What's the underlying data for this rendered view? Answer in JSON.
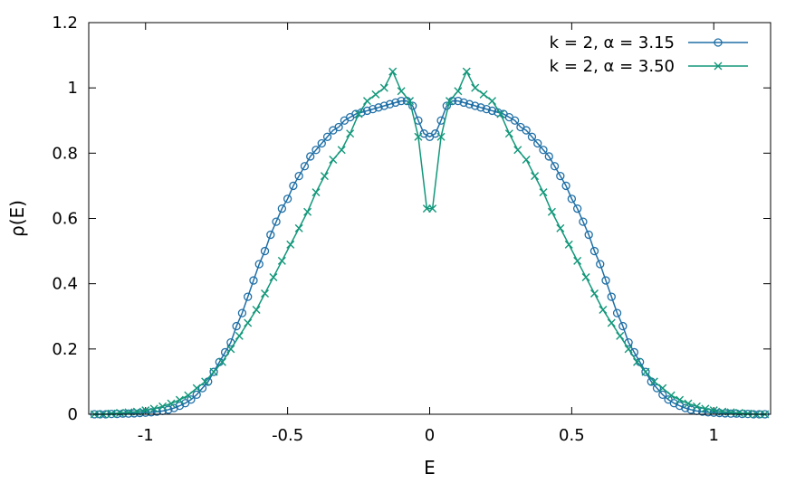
{
  "chart_data": {
    "type": "line",
    "title": "",
    "xlabel": "E",
    "ylabel": "ρ(E)",
    "xlim": [
      -1.2,
      1.2
    ],
    "ylim": [
      0,
      1.2
    ],
    "xticks": [
      {
        "value": -1,
        "label": "-1"
      },
      {
        "value": -0.5,
        "label": "-0.5"
      },
      {
        "value": 0,
        "label": "0"
      },
      {
        "value": 0.5,
        "label": "0.5"
      },
      {
        "value": 1,
        "label": "1"
      }
    ],
    "yticks": [
      {
        "value": 0,
        "label": "0"
      },
      {
        "value": 0.2,
        "label": "0.2"
      },
      {
        "value": 0.4,
        "label": "0.4"
      },
      {
        "value": 0.6,
        "label": "0.6"
      },
      {
        "value": 0.8,
        "label": "0.8"
      },
      {
        "value": 1,
        "label": "1"
      },
      {
        "value": 1.2,
        "label": "1.2"
      }
    ],
    "grid": false,
    "legend_position": "top-right",
    "series": [
      {
        "name": "k = 2, α = 3.15",
        "color": "#1f6fa6",
        "marker": "circle",
        "x": [
          -1.18,
          -1.16,
          -1.14,
          -1.12,
          -1.1,
          -1.08,
          -1.06,
          -1.04,
          -1.02,
          -1.0,
          -0.98,
          -0.96,
          -0.94,
          -0.92,
          -0.9,
          -0.88,
          -0.86,
          -0.84,
          -0.82,
          -0.8,
          -0.78,
          -0.76,
          -0.74,
          -0.72,
          -0.7,
          -0.68,
          -0.66,
          -0.64,
          -0.62,
          -0.6,
          -0.58,
          -0.56,
          -0.54,
          -0.52,
          -0.5,
          -0.48,
          -0.46,
          -0.44,
          -0.42,
          -0.4,
          -0.38,
          -0.36,
          -0.34,
          -0.32,
          -0.3,
          -0.28,
          -0.26,
          -0.24,
          -0.22,
          -0.2,
          -0.18,
          -0.16,
          -0.14,
          -0.12,
          -0.1,
          -0.08,
          -0.06,
          -0.04,
          -0.02,
          0,
          0.02,
          0.04,
          0.06,
          0.08,
          0.1,
          0.12,
          0.14,
          0.16,
          0.18,
          0.2,
          0.22,
          0.24,
          0.26,
          0.28,
          0.3,
          0.32,
          0.34,
          0.36,
          0.38,
          0.4,
          0.42,
          0.44,
          0.46,
          0.48,
          0.5,
          0.52,
          0.54,
          0.56,
          0.58,
          0.6,
          0.62,
          0.64,
          0.66,
          0.68,
          0.7,
          0.72,
          0.74,
          0.76,
          0.78,
          0.8,
          0.82,
          0.84,
          0.86,
          0.88,
          0.9,
          0.92,
          0.94,
          0.96,
          0.98,
          1.0,
          1.02,
          1.04,
          1.06,
          1.08,
          1.1,
          1.12,
          1.14,
          1.16,
          1.18
        ],
        "y": [
          0,
          0,
          0,
          0.001,
          0.001,
          0.002,
          0.002,
          0.003,
          0.004,
          0.005,
          0.006,
          0.008,
          0.01,
          0.014,
          0.019,
          0.026,
          0.034,
          0.045,
          0.06,
          0.08,
          0.1,
          0.13,
          0.16,
          0.19,
          0.22,
          0.27,
          0.31,
          0.36,
          0.41,
          0.46,
          0.5,
          0.55,
          0.59,
          0.63,
          0.66,
          0.7,
          0.73,
          0.76,
          0.79,
          0.81,
          0.83,
          0.85,
          0.87,
          0.88,
          0.9,
          0.91,
          0.92,
          0.925,
          0.93,
          0.935,
          0.94,
          0.945,
          0.95,
          0.955,
          0.96,
          0.96,
          0.945,
          0.9,
          0.86,
          0.85,
          0.86,
          0.9,
          0.945,
          0.96,
          0.96,
          0.955,
          0.95,
          0.945,
          0.94,
          0.935,
          0.93,
          0.925,
          0.92,
          0.91,
          0.9,
          0.88,
          0.87,
          0.85,
          0.83,
          0.81,
          0.79,
          0.76,
          0.73,
          0.7,
          0.66,
          0.63,
          0.59,
          0.55,
          0.5,
          0.46,
          0.41,
          0.36,
          0.31,
          0.27,
          0.22,
          0.19,
          0.16,
          0.13,
          0.1,
          0.08,
          0.06,
          0.045,
          0.034,
          0.026,
          0.019,
          0.014,
          0.01,
          0.008,
          0.006,
          0.005,
          0.004,
          0.003,
          0.002,
          0.002,
          0.001,
          0.001,
          0,
          0,
          0
        ]
      },
      {
        "name": "k = 2, α = 3.50",
        "color": "#12977a",
        "marker": "x",
        "x": [
          -1.18,
          -1.15,
          -1.12,
          -1.09,
          -1.06,
          -1.03,
          -1.0,
          -0.97,
          -0.94,
          -0.91,
          -0.88,
          -0.85,
          -0.82,
          -0.79,
          -0.76,
          -0.73,
          -0.7,
          -0.67,
          -0.64,
          -0.61,
          -0.58,
          -0.55,
          -0.52,
          -0.49,
          -0.46,
          -0.43,
          -0.4,
          -0.37,
          -0.34,
          -0.31,
          -0.28,
          -0.25,
          -0.22,
          -0.19,
          -0.16,
          -0.13,
          -0.1,
          -0.07,
          -0.04,
          -0.01,
          0.01,
          0.04,
          0.07,
          0.1,
          0.13,
          0.16,
          0.19,
          0.22,
          0.25,
          0.28,
          0.31,
          0.34,
          0.37,
          0.4,
          0.43,
          0.46,
          0.49,
          0.52,
          0.55,
          0.58,
          0.61,
          0.64,
          0.67,
          0.7,
          0.73,
          0.76,
          0.79,
          0.82,
          0.85,
          0.88,
          0.91,
          0.94,
          0.97,
          1.0,
          1.03,
          1.06,
          1.09,
          1.12,
          1.15,
          1.18
        ],
        "y": [
          0,
          0,
          0.002,
          0.004,
          0.006,
          0.008,
          0.012,
          0.017,
          0.024,
          0.033,
          0.044,
          0.058,
          0.08,
          0.1,
          0.13,
          0.16,
          0.2,
          0.24,
          0.28,
          0.32,
          0.37,
          0.42,
          0.47,
          0.52,
          0.57,
          0.62,
          0.68,
          0.73,
          0.78,
          0.81,
          0.86,
          0.92,
          0.96,
          0.98,
          1.0,
          1.05,
          0.99,
          0.96,
          0.85,
          0.63,
          0.63,
          0.85,
          0.96,
          0.99,
          1.05,
          1.0,
          0.98,
          0.96,
          0.92,
          0.86,
          0.81,
          0.78,
          0.73,
          0.68,
          0.62,
          0.57,
          0.52,
          0.47,
          0.42,
          0.37,
          0.32,
          0.28,
          0.24,
          0.2,
          0.16,
          0.13,
          0.1,
          0.08,
          0.058,
          0.044,
          0.033,
          0.024,
          0.017,
          0.012,
          0.008,
          0.006,
          0.004,
          0.002,
          0,
          0
        ]
      }
    ]
  }
}
